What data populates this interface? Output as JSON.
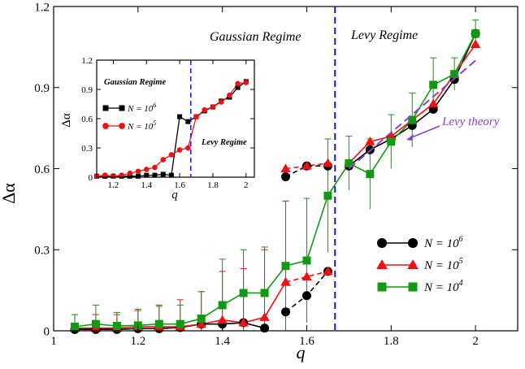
{
  "chart_data": [
    {
      "type": "line",
      "xlabel": "q",
      "ylabel": "Δα",
      "xlim": [
        1.0,
        2.1
      ],
      "ylim": [
        0.0,
        1.2
      ],
      "xticks": [
        1,
        1.2,
        1.4,
        1.6,
        1.8,
        2
      ],
      "xtick_labels": [
        "1",
        "1.2",
        "1.4",
        "1.6",
        "1.8",
        "2"
      ],
      "yticks": [
        0,
        0.3,
        0.6,
        0.9,
        1.2
      ],
      "ytick_labels": [
        "0",
        "0.3",
        "0.6",
        "0.9",
        "1.2"
      ],
      "grid": false,
      "legend_position": "lower-right",
      "vertical_line_x": 1.667,
      "annotations": {
        "gaussian_regime": "Gaussian Regime",
        "levy_regime": "Levy Regime",
        "levy_theory": "Levy theory"
      },
      "levy_theory": {
        "x": [
          1.7,
          2.0
        ],
        "y": [
          0.6,
          1.0
        ],
        "color": "#8b3fc4"
      },
      "series": [
        {
          "name": "N = 10^6",
          "legend_base": "N = 10",
          "legend_exp": "6",
          "color": "#000000",
          "marker": "circle",
          "segments": [
            {
              "style": "solid",
              "x": [
                1.05,
                1.1,
                1.15,
                1.2,
                1.25,
                1.3,
                1.35,
                1.4,
                1.45,
                1.5
              ],
              "y": [
                0.005,
                0.005,
                0.005,
                0.008,
                0.008,
                0.012,
                0.025,
                0.025,
                0.03,
                0.01
              ]
            },
            {
              "style": "dashed",
              "x": [
                1.55,
                1.6,
                1.65
              ],
              "y": [
                0.07,
                0.13,
                0.22
              ]
            },
            {
              "style": "dashed",
              "x": [
                1.55,
                1.6,
                1.65
              ],
              "y": [
                0.57,
                0.61,
                0.61
              ]
            },
            {
              "style": "solid",
              "x": [
                1.7,
                1.75,
                1.8,
                1.85,
                1.9,
                1.95,
                2.0
              ],
              "y": [
                0.61,
                0.67,
                0.71,
                0.76,
                0.82,
                0.93,
                1.1
              ]
            }
          ]
        },
        {
          "name": "N = 10^5",
          "legend_base": "N = 10",
          "legend_exp": "5",
          "color": "#ee1111",
          "marker": "triangle",
          "segments": [
            {
              "style": "solid",
              "x": [
                1.05,
                1.1,
                1.15,
                1.2,
                1.25,
                1.3,
                1.35,
                1.4,
                1.45,
                1.5,
                1.55
              ],
              "y": [
                0.01,
                0.01,
                0.01,
                0.015,
                0.015,
                0.015,
                0.025,
                0.04,
                0.03,
                0.05,
                0.18
              ]
            },
            {
              "style": "dashed",
              "x": [
                1.55,
                1.6,
                1.65
              ],
              "y": [
                0.18,
                0.2,
                0.22
              ]
            },
            {
              "style": "dashed",
              "x": [
                1.55,
                1.6,
                1.65
              ],
              "y": [
                0.6,
                0.61,
                0.62
              ]
            },
            {
              "style": "solid",
              "x": [
                1.7,
                1.75,
                1.8,
                1.85,
                1.9,
                1.95,
                2.0
              ],
              "y": [
                0.62,
                0.7,
                0.72,
                0.78,
                0.84,
                0.95,
                1.06
              ]
            }
          ],
          "error": [
            0.05,
            0.05,
            0.05,
            0.06,
            0.08,
            0.1,
            0.12,
            0.18,
            0.2,
            0.25,
            0.3
          ]
        },
        {
          "name": "N = 10^4",
          "legend_base": "N = 10",
          "legend_exp": "4",
          "color": "#119911",
          "marker": "square",
          "segments": [
            {
              "style": "solid",
              "x": [
                1.05,
                1.1,
                1.15,
                1.2,
                1.25,
                1.3,
                1.35,
                1.4,
                1.45,
                1.5,
                1.55,
                1.6,
                1.65,
                1.7,
                1.75,
                1.8,
                1.85,
                1.9,
                1.95,
                2.0
              ],
              "y": [
                0.015,
                0.025,
                0.018,
                0.02,
                0.025,
                0.025,
                0.045,
                0.095,
                0.14,
                0.14,
                0.24,
                0.26,
                0.5,
                0.62,
                0.58,
                0.7,
                0.78,
                0.91,
                0.95,
                1.1
              ]
            }
          ],
          "error": [
            0.045,
            0.07,
            0.05,
            0.06,
            0.065,
            0.07,
            0.1,
            0.17,
            0.16,
            0.17,
            0.24,
            0.23,
            0.21,
            0.1,
            0.13,
            0.1,
            0.1,
            0.1,
            0.06,
            0.05
          ]
        }
      ]
    },
    {
      "type": "line",
      "inset": true,
      "xlabel": "q",
      "ylabel": "Δα",
      "xlim": [
        1.1,
        2.05
      ],
      "ylim": [
        0.0,
        1.2
      ],
      "xticks": [
        1.2,
        1.4,
        1.6,
        1.8,
        2
      ],
      "xtick_labels": [
        "1.2",
        "1.4",
        "1.6",
        "1.8",
        "2"
      ],
      "yticks": [
        0,
        0.3,
        0.6,
        0.9,
        1.2
      ],
      "ytick_labels": [
        "0",
        "0.3",
        "0.6",
        "0.9",
        "1.2"
      ],
      "vertical_line_x": 1.667,
      "annotations": {
        "gaussian_regime": "Gaussian Regime",
        "levy_regime": "Levy Regime"
      },
      "series": [
        {
          "name": "N = 10^6",
          "legend_base": "N = 10",
          "legend_exp": "6",
          "color": "#000000",
          "marker": "square",
          "x": [
            1.1,
            1.15,
            1.2,
            1.25,
            1.3,
            1.35,
            1.4,
            1.45,
            1.5,
            1.55,
            1.6,
            1.65,
            1.7,
            1.75,
            1.8,
            1.85,
            1.9,
            1.95,
            2.0
          ],
          "y": [
            0.01,
            0.01,
            0.01,
            0.01,
            0.01,
            0.01,
            0.02,
            0.02,
            0.03,
            0.02,
            0.62,
            0.57,
            0.62,
            0.68,
            0.72,
            0.78,
            0.82,
            0.92,
            0.98
          ]
        },
        {
          "name": "N = 10^5",
          "legend_base": "N = 10",
          "legend_exp": "5",
          "color": "#ee1111",
          "marker": "circle",
          "x": [
            1.1,
            1.15,
            1.2,
            1.25,
            1.3,
            1.35,
            1.4,
            1.45,
            1.5,
            1.55,
            1.6,
            1.65,
            1.7,
            1.75,
            1.8,
            1.85,
            1.9,
            1.95,
            2.0
          ],
          "y": [
            0.01,
            0.02,
            0.01,
            0.02,
            0.04,
            0.06,
            0.08,
            0.1,
            0.18,
            0.23,
            0.28,
            0.3,
            0.62,
            0.69,
            0.72,
            0.77,
            0.84,
            0.96,
            0.97
          ]
        }
      ]
    }
  ]
}
